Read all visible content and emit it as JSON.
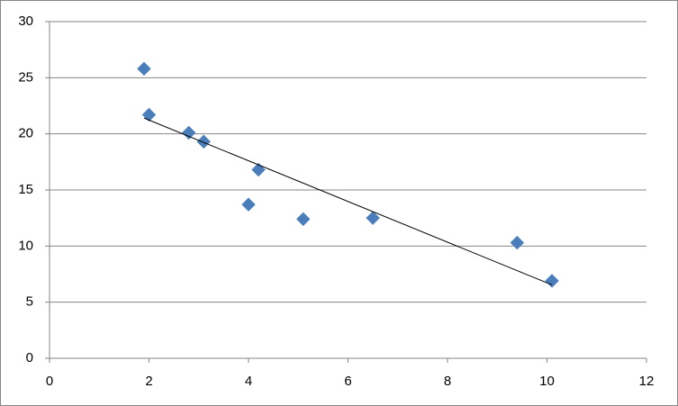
{
  "chart_data": {
    "type": "scatter",
    "x": [
      1.9,
      2.0,
      2.8,
      3.1,
      4.2,
      4.0,
      5.1,
      6.5,
      9.4,
      10.1
    ],
    "values": [
      25.8,
      21.7,
      20.1,
      19.3,
      16.8,
      13.7,
      12.4,
      12.5,
      10.3,
      6.9
    ],
    "color": "#4a7ebb",
    "trendline": "linear",
    "trendline_color": "#000000",
    "xlim": [
      0,
      12
    ],
    "xticks": [
      0,
      2,
      4,
      6,
      8,
      10,
      12
    ],
    "ylim": [
      0,
      30
    ],
    "yticks": [
      0,
      5,
      10,
      15,
      20,
      25,
      30
    ],
    "grid": true
  }
}
